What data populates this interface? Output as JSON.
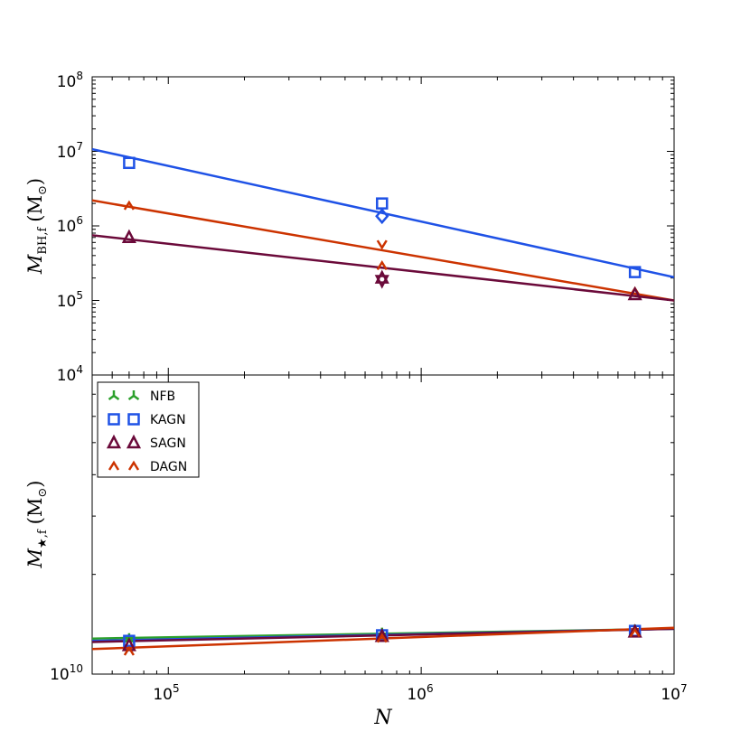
{
  "chart_data": [
    {
      "type": "scatter",
      "panel": "top",
      "ylabel": "M_BH,f (M_⊙)",
      "ylabel_main": "M",
      "ylabel_sub": "BH,f",
      "ylabel_unit": "(M",
      "ylabel_odot": "⊙",
      "ylabel_close": ")",
      "xscale": "log",
      "yscale": "log",
      "xlim": [
        50000,
        10000000
      ],
      "ylim": [
        10000,
        100000000
      ],
      "y_ticks": [
        {
          "value": 10000,
          "base": "10",
          "exp": "4"
        },
        {
          "value": 100000,
          "base": "10",
          "exp": "5"
        },
        {
          "value": 1000000,
          "base": "10",
          "exp": "6"
        },
        {
          "value": 10000000,
          "base": "10",
          "exp": "7"
        },
        {
          "value": 100000000,
          "base": "10",
          "exp": "8"
        }
      ],
      "series": [
        {
          "name": "KAGN",
          "color": "#1f52e6",
          "marker": "square",
          "points": [
            [
              70000,
              7000000
            ],
            [
              700000,
              2000000
            ],
            [
              7000000,
              240000
            ]
          ],
          "extra_points": [
            {
              "x": 700000,
              "y": 1350000,
              "marker": "diamond"
            }
          ],
          "fit": {
            "x": [
              50000,
              10000000
            ],
            "y": [
              10700000,
              205000
            ]
          }
        },
        {
          "name": "DAGN",
          "color": "#cc3300",
          "marker": "caret",
          "points": [
            [
              70000,
              1850000
            ],
            [
              700000,
              290000
            ],
            [
              7000000,
              130000
            ]
          ],
          "extra_points": [
            {
              "x": 700000,
              "y": 570000,
              "marker": "v"
            }
          ],
          "fit": {
            "x": [
              50000,
              10000000
            ],
            "y": [
              2200000,
              100000
            ]
          }
        },
        {
          "name": "SAGN",
          "color": "#6b0a3a",
          "marker": "triangle",
          "points": [
            [
              70000,
              700000
            ],
            [
              700000,
              200000
            ],
            [
              7000000,
              120000
            ]
          ],
          "extra_points": [
            {
              "x": 700000,
              "y": 185000,
              "marker": "triangle-down"
            }
          ],
          "fit": {
            "x": [
              50000,
              10000000
            ],
            "y": [
              750000,
              100000
            ]
          }
        }
      ]
    },
    {
      "type": "scatter",
      "panel": "bottom",
      "xlabel": "N",
      "ylabel": "M_★,f (M_⊙)",
      "ylabel_main": "M",
      "ylabel_sub": "★,f",
      "ylabel_unit": "(M",
      "ylabel_odot": "⊙",
      "ylabel_close": ")",
      "xscale": "log",
      "yscale": "log",
      "xlim": [
        50000,
        10000000
      ],
      "ylim": [
        10000000000,
        80000000000
      ],
      "x_ticks": [
        {
          "value": 100000,
          "base": "10",
          "exp": "5"
        },
        {
          "value": 1000000,
          "base": "10",
          "exp": "6"
        },
        {
          "value": 10000000,
          "base": "10",
          "exp": "7"
        }
      ],
      "y_ticks": [
        {
          "value": 10000000000,
          "base": "10",
          "exp": "10"
        }
      ],
      "legend": {
        "placement": "top-left",
        "entries": [
          "NFB",
          "KAGN",
          "SAGN",
          "DAGN"
        ]
      },
      "series": [
        {
          "name": "NFB",
          "color": "#2ca02c",
          "marker": "tri",
          "points": [
            [
              70000,
              12800000000
            ],
            [
              700000,
              13300000000
            ],
            [
              7000000,
              13600000000
            ]
          ],
          "fit": {
            "x": [
              50000,
              10000000
            ],
            "y": [
              12800000000,
              13700000000
            ]
          }
        },
        {
          "name": "KAGN",
          "color": "#1f52e6",
          "marker": "square",
          "points": [
            [
              70000,
              12600000000
            ],
            [
              700000,
              13100000000
            ],
            [
              7000000,
              13500000000
            ]
          ],
          "fit": {
            "x": [
              50000,
              10000000
            ],
            "y": [
              12600000000,
              13700000000
            ]
          }
        },
        {
          "name": "SAGN",
          "color": "#6b0a3a",
          "marker": "triangle",
          "points": [
            [
              70000,
              12200000000
            ],
            [
              700000,
              13000000000
            ],
            [
              7000000,
              13400000000
            ]
          ],
          "fit": {
            "x": [
              50000,
              10000000
            ],
            "y": [
              12500000000,
              13700000000
            ]
          }
        },
        {
          "name": "DAGN",
          "color": "#cc3300",
          "marker": "caret",
          "points": [
            [
              70000,
              11700000000
            ],
            [
              700000,
              12800000000
            ],
            [
              7000000,
              13300000000
            ]
          ],
          "fit": {
            "x": [
              50000,
              10000000
            ],
            "y": [
              11900000000,
              13800000000
            ]
          }
        }
      ]
    }
  ]
}
